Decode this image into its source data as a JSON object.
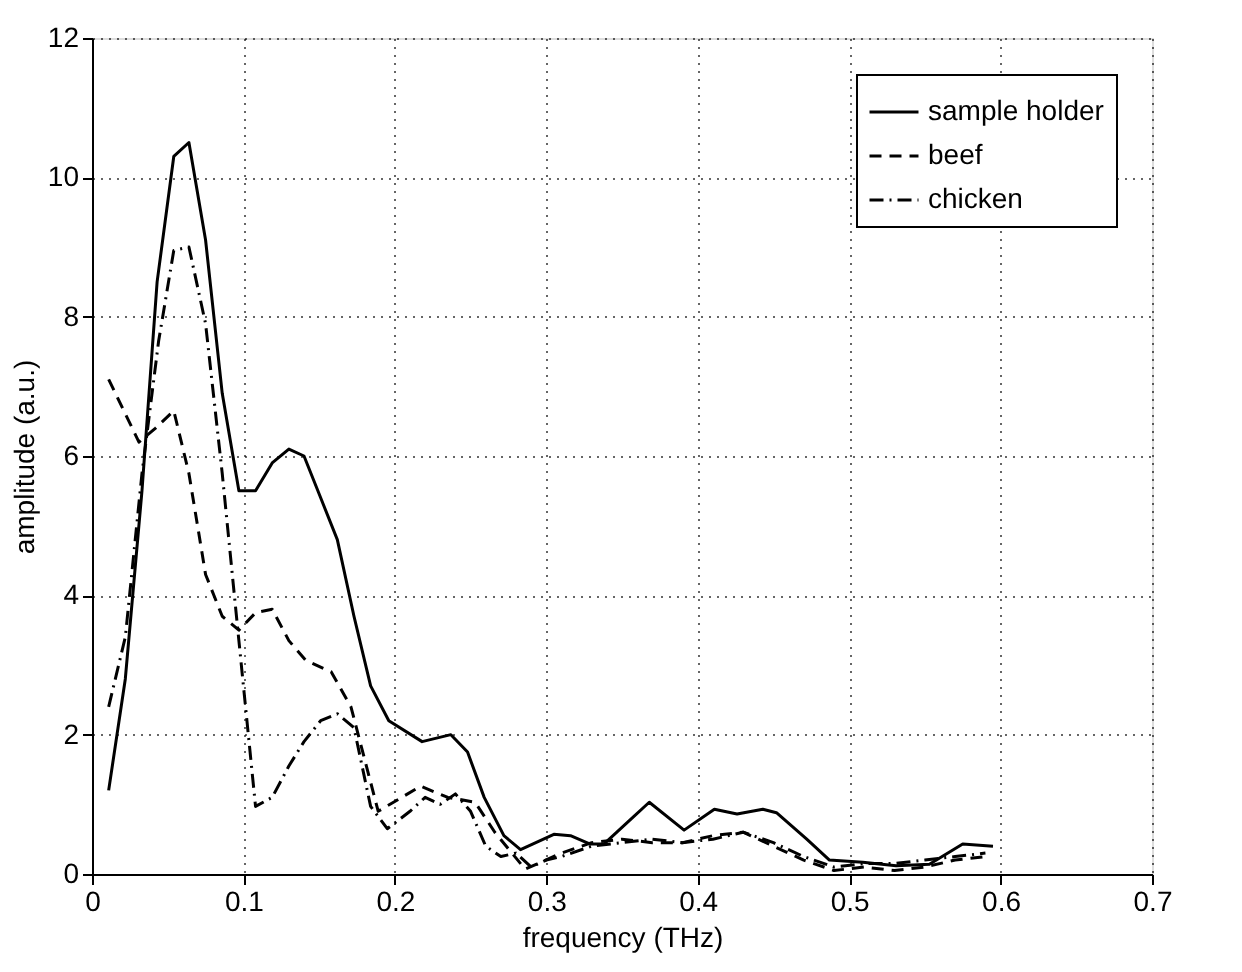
{
  "chart_data": {
    "type": "line",
    "xlabel": "frequency (THz)",
    "ylabel": "amplitude (a.u.)",
    "xlim": [
      0,
      0.7
    ],
    "ylim": [
      0,
      12
    ],
    "xticks": [
      0,
      0.1,
      0.2,
      0.3,
      0.4,
      0.5,
      0.6,
      0.7
    ],
    "yticks": [
      0,
      2,
      4,
      6,
      8,
      10,
      12
    ],
    "grid": true,
    "legend": "top right",
    "marker": "none",
    "series": [
      {
        "name": "sample holder",
        "color": "#000000",
        "line_style": "solid",
        "x": [
          0.011,
          0.022,
          0.033,
          0.043,
          0.054,
          0.064,
          0.075,
          0.086,
          0.097,
          0.108,
          0.119,
          0.13,
          0.14,
          0.151,
          0.162,
          0.173,
          0.184,
          0.196,
          0.218,
          0.237,
          0.248,
          0.259,
          0.272,
          0.283,
          0.305,
          0.316,
          0.329,
          0.338,
          0.355,
          0.368,
          0.391,
          0.411,
          0.426,
          0.443,
          0.452,
          0.472,
          0.487,
          0.509,
          0.531,
          0.553,
          0.575,
          0.595
        ],
        "values": [
          1.2,
          2.8,
          5.5,
          8.5,
          10.3,
          10.5,
          9.1,
          6.9,
          5.5,
          5.5,
          5.9,
          6.1,
          6.0,
          5.4,
          4.8,
          3.7,
          2.7,
          2.2,
          1.9,
          2.0,
          1.75,
          1.1,
          0.55,
          0.35,
          0.57,
          0.55,
          0.43,
          0.43,
          0.77,
          1.03,
          0.63,
          0.93,
          0.86,
          0.93,
          0.88,
          0.5,
          0.2,
          0.17,
          0.12,
          0.14,
          0.43,
          0.4
        ]
      },
      {
        "name": "beef",
        "color": "#000000",
        "line_style": "dashed",
        "x": [
          0.011,
          0.031,
          0.042,
          0.054,
          0.064,
          0.075,
          0.086,
          0.097,
          0.108,
          0.119,
          0.13,
          0.141,
          0.158,
          0.171,
          0.189,
          0.217,
          0.235,
          0.253,
          0.266,
          0.286,
          0.31,
          0.33,
          0.35,
          0.37,
          0.39,
          0.41,
          0.43,
          0.45,
          0.47,
          0.49,
          0.51,
          0.53,
          0.55,
          0.57,
          0.59
        ],
        "values": [
          7.1,
          6.2,
          6.4,
          6.65,
          5.75,
          4.3,
          3.7,
          3.5,
          3.75,
          3.8,
          3.35,
          3.07,
          2.9,
          2.4,
          0.9,
          1.26,
          1.1,
          1.03,
          0.6,
          0.07,
          0.3,
          0.45,
          0.5,
          0.45,
          0.45,
          0.55,
          0.6,
          0.4,
          0.2,
          0.05,
          0.1,
          0.05,
          0.1,
          0.2,
          0.25
        ]
      },
      {
        "name": "chicken",
        "color": "#000000",
        "line_style": "dashdot",
        "x": [
          0.011,
          0.022,
          0.033,
          0.044,
          0.054,
          0.064,
          0.075,
          0.086,
          0.097,
          0.108,
          0.119,
          0.13,
          0.14,
          0.151,
          0.162,
          0.173,
          0.184,
          0.195,
          0.21,
          0.22,
          0.23,
          0.24,
          0.25,
          0.26,
          0.27,
          0.28,
          0.29,
          0.3,
          0.31,
          0.33,
          0.35,
          0.37,
          0.39,
          0.41,
          0.43,
          0.45,
          0.47,
          0.49,
          0.51,
          0.53,
          0.55,
          0.57,
          0.59
        ],
        "values": [
          2.4,
          3.4,
          5.75,
          7.65,
          8.95,
          9.0,
          7.9,
          5.75,
          3.35,
          0.97,
          1.1,
          1.55,
          1.9,
          2.2,
          2.3,
          2.1,
          0.97,
          0.65,
          0.9,
          1.1,
          1.0,
          1.15,
          0.9,
          0.4,
          0.25,
          0.3,
          0.1,
          0.2,
          0.25,
          0.4,
          0.45,
          0.5,
          0.45,
          0.5,
          0.6,
          0.45,
          0.25,
          0.1,
          0.15,
          0.15,
          0.2,
          0.25,
          0.3
        ]
      }
    ]
  }
}
